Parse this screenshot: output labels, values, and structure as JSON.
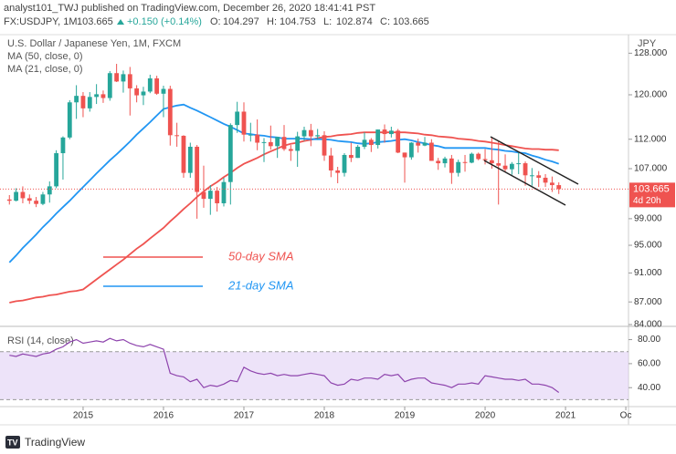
{
  "header": {
    "line1": "analyst101_TWJ published on TradingView.com, December 26, 2020 18:41:41 PST",
    "symbol": "FX:USDJPY, 1M",
    "price": "103.665",
    "change": "+0.150 (+0.14%)",
    "ohlc": [
      {
        "label": "O:",
        "value": "104.297"
      },
      {
        "label": "H:",
        "value": "104.753"
      },
      {
        "label": "L:",
        "value": "102.874"
      },
      {
        "label": "C:",
        "value": "103.665"
      }
    ]
  },
  "footer": {
    "brand": "TradingView"
  },
  "chart_data": {
    "type": "candlestick",
    "title": "U.S. Dollar / Japanese Yen, 1M, FXCM",
    "currency": "JPY",
    "log": true,
    "ylim": [
      84,
      131
    ],
    "yticks": [
      {
        "value": 84,
        "label": "84.000"
      },
      {
        "value": 87,
        "label": "87.000"
      },
      {
        "value": 91,
        "label": "91.000"
      },
      {
        "value": 95,
        "label": "95.000"
      },
      {
        "value": 99,
        "label": "99.000"
      },
      {
        "value": 107,
        "label": "107.000"
      },
      {
        "value": 112,
        "label": "112.000"
      },
      {
        "value": 120,
        "label": "120.000"
      },
      {
        "value": 128,
        "label": "128.000"
      }
    ],
    "xlim": [
      -1.4,
      92.4
    ],
    "xticks": [
      {
        "value": 11,
        "label": "2015"
      },
      {
        "value": 23,
        "label": "2016"
      },
      {
        "value": 35,
        "label": "2017"
      },
      {
        "value": 47,
        "label": "2018"
      },
      {
        "value": 59,
        "label": "2019"
      },
      {
        "value": 71,
        "label": "2020"
      },
      {
        "value": 83,
        "label": "2021"
      },
      {
        "value": 92,
        "label": "Oc"
      }
    ],
    "up_color": "#26a69a",
    "down_color": "#ef5350",
    "last_price": {
      "value": 103.665,
      "countdown": "4d 20h",
      "color": "#ef5350"
    },
    "open": [
      102.0,
      101.8,
      103.2,
      102.2,
      101.8,
      101.3,
      102.8,
      104.1,
      109.6,
      112.3,
      118.6,
      119.8,
      117.5,
      119.6,
      120.1,
      119.4,
      124.1,
      122.5,
      123.9,
      121.2,
      119.9,
      120.6,
      123.1,
      120.2,
      121.1,
      112.7,
      112.6,
      106.3,
      110.7,
      103.2,
      102.1,
      103.4,
      101.4,
      104.8,
      114.5,
      116.9,
      112.8,
      112.8,
      111.4,
      111.5,
      110.8,
      112.4,
      110.3,
      110.0,
      112.5,
      113.6,
      112.5,
      112.7,
      109.2,
      106.7,
      106.3,
      109.3,
      108.8,
      110.7,
      111.9,
      111.0,
      113.7,
      112.9,
      113.5,
      109.7,
      108.9,
      111.4,
      110.9,
      111.4,
      108.3,
      107.9,
      108.7,
      106.3,
      108.1,
      108.0,
      109.5,
      108.6,
      108.4,
      107.9,
      107.5,
      106.9,
      107.8,
      107.9,
      105.9,
      105.9,
      105.5,
      104.7,
      104.297
    ],
    "high": [
      102.7,
      103.8,
      104.1,
      102.8,
      102.4,
      103.2,
      104.9,
      110.1,
      112.5,
      119.0,
      121.8,
      120.5,
      120.5,
      122.0,
      120.8,
      124.5,
      125.9,
      124.6,
      125.3,
      121.8,
      121.5,
      123.8,
      123.6,
      121.7,
      121.7,
      114.9,
      112.7,
      111.4,
      111.0,
      107.5,
      104.3,
      104.0,
      105.5,
      114.8,
      118.7,
      118.6,
      114.9,
      115.5,
      112.2,
      114.4,
      112.4,
      114.5,
      111.0,
      113.3,
      114.2,
      114.7,
      113.8,
      113.4,
      110.5,
      107.3,
      109.6,
      111.4,
      111.0,
      113.2,
      112.2,
      113.7,
      114.6,
      114.2,
      113.8,
      109.7,
      111.5,
      112.1,
      112.4,
      112.0,
      108.8,
      109.0,
      109.3,
      108.5,
      109.3,
      109.7,
      109.7,
      110.3,
      112.2,
      111.7,
      109.4,
      108.1,
      109.9,
      108.2,
      107.1,
      106.6,
      106.1,
      105.7,
      104.753
    ],
    "low": [
      101.2,
      101.7,
      101.4,
      101.3,
      100.8,
      101.1,
      101.5,
      103.8,
      105.2,
      112.0,
      115.6,
      115.9,
      116.9,
      118.3,
      118.5,
      118.9,
      122.4,
      120.4,
      116.2,
      118.6,
      118.1,
      120.3,
      120.0,
      115.9,
      110.9,
      110.7,
      105.5,
      105.5,
      99.0,
      100.7,
      99.6,
      100.1,
      100.9,
      101.2,
      113.1,
      111.6,
      111.6,
      110.1,
      108.1,
      110.2,
      108.8,
      110.0,
      108.3,
      107.3,
      111.7,
      110.8,
      111.9,
      108.3,
      105.6,
      104.6,
      105.7,
      108.1,
      108.8,
      110.3,
      109.8,
      110.4,
      111.4,
      112.3,
      109.6,
      104.7,
      108.5,
      109.7,
      110.8,
      108.3,
      106.8,
      107.2,
      104.5,
      105.7,
      106.5,
      107.9,
      108.4,
      107.7,
      107.0,
      101.2,
      106.4,
      105.99,
      106.1,
      104.2,
      104.2,
      104.0,
      104.0,
      103.2,
      102.874
    ],
    "close": [
      101.8,
      103.2,
      102.2,
      101.8,
      101.3,
      102.8,
      104.1,
      109.6,
      112.3,
      118.6,
      119.8,
      117.5,
      119.6,
      120.1,
      119.4,
      124.1,
      122.5,
      123.9,
      121.2,
      119.9,
      120.6,
      123.1,
      120.2,
      121.1,
      112.7,
      112.6,
      106.3,
      110.7,
      103.2,
      102.1,
      103.4,
      101.4,
      104.8,
      114.5,
      116.9,
      112.8,
      112.8,
      111.4,
      111.5,
      110.8,
      112.4,
      110.3,
      110.0,
      112.5,
      113.6,
      112.5,
      112.7,
      109.2,
      106.7,
      106.3,
      109.3,
      108.8,
      110.7,
      111.9,
      111.0,
      113.7,
      112.9,
      113.5,
      109.7,
      108.9,
      111.4,
      110.9,
      111.4,
      108.3,
      107.9,
      108.7,
      106.3,
      108.1,
      108.0,
      109.5,
      108.6,
      108.4,
      107.9,
      107.5,
      106.9,
      107.8,
      107.9,
      105.9,
      105.9,
      105.5,
      104.7,
      104.3,
      103.665
    ],
    "series": [
      {
        "name": "MA (50, close, 0)",
        "color": "#ef5350",
        "values": [
          86.9,
          87.1,
          87.2,
          87.4,
          87.6,
          87.7,
          87.9,
          88.0,
          88.2,
          88.4,
          88.5,
          88.7,
          89.4,
          90.1,
          90.8,
          91.5,
          92.2,
          92.9,
          93.7,
          94.5,
          95.2,
          96.0,
          96.8,
          97.6,
          98.6,
          99.5,
          100.5,
          101.4,
          102.4,
          103.3,
          104.1,
          104.8,
          105.6,
          106.3,
          107.1,
          107.8,
          108.3,
          108.8,
          109.4,
          109.9,
          110.4,
          110.9,
          111.2,
          111.4,
          111.7,
          111.9,
          112.2,
          112.4,
          112.5,
          112.7,
          112.8,
          112.9,
          113.1,
          113.2,
          113.2,
          113.2,
          113.2,
          113.2,
          113.2,
          113.2,
          113.1,
          113.0,
          112.8,
          112.7,
          112.5,
          112.4,
          112.3,
          112.1,
          112.0,
          111.9,
          111.7,
          111.6,
          111.4,
          111.2,
          111.0,
          110.8,
          110.6,
          110.4,
          110.3,
          110.3,
          110.2,
          110.2,
          110.1
        ]
      },
      {
        "name": "MA (21, close, 0)",
        "color": "#2196f3",
        "values": [
          92.5,
          93.5,
          94.6,
          95.6,
          96.6,
          97.7,
          98.7,
          99.8,
          100.8,
          101.8,
          102.9,
          104.0,
          105.1,
          106.2,
          107.3,
          108.4,
          109.4,
          110.5,
          111.6,
          112.8,
          113.9,
          115.0,
          116.2,
          117.4,
          117.7,
          118.0,
          118.2,
          117.6,
          117.1,
          116.5,
          115.9,
          115.3,
          114.7,
          114.2,
          113.6,
          113.0,
          112.9,
          112.7,
          112.6,
          112.4,
          112.3,
          112.1,
          112.1,
          112.1,
          112.1,
          112.0,
          112.0,
          112.0,
          111.9,
          111.7,
          111.6,
          111.5,
          111.3,
          111.2,
          111.3,
          111.5,
          111.6,
          111.7,
          111.9,
          112.0,
          111.8,
          111.5,
          111.3,
          111.0,
          110.8,
          110.5,
          110.5,
          110.5,
          110.5,
          110.5,
          110.5,
          110.5,
          110.3,
          110.2,
          110.0,
          109.9,
          109.7,
          109.6,
          109.2,
          108.9,
          108.5,
          108.2,
          107.8
        ]
      }
    ],
    "annotations": [
      "50-day SMA",
      "21-day SMA"
    ],
    "rsi": {
      "title": "RSI (14, close)",
      "color": "#8e44ad",
      "band_color": "#e1d0f5",
      "ylim": [
        25,
        88
      ],
      "yticks": [
        {
          "value": 40,
          "label": "40.00"
        },
        {
          "value": 60,
          "label": "60.00"
        },
        {
          "value": 80,
          "label": "80.00"
        }
      ],
      "bands": [
        30,
        70
      ],
      "values": [
        67,
        66,
        68,
        67,
        66,
        68,
        69,
        72,
        74,
        78,
        80,
        77,
        78,
        79,
        78,
        81,
        79,
        80,
        77,
        75,
        74,
        76,
        74,
        72,
        52,
        50,
        49,
        45,
        47,
        40,
        42,
        41,
        43,
        46,
        45,
        57,
        54,
        52,
        51,
        52,
        50,
        51,
        50,
        50,
        51,
        52,
        51,
        50,
        44,
        42,
        43,
        47,
        46,
        48,
        48,
        47,
        51,
        50,
        51,
        45,
        47,
        48,
        48,
        44,
        43,
        42,
        40,
        43,
        43,
        44,
        43,
        50,
        49,
        48,
        47,
        47,
        46,
        47,
        43,
        43,
        42,
        40,
        36
      ]
    }
  }
}
